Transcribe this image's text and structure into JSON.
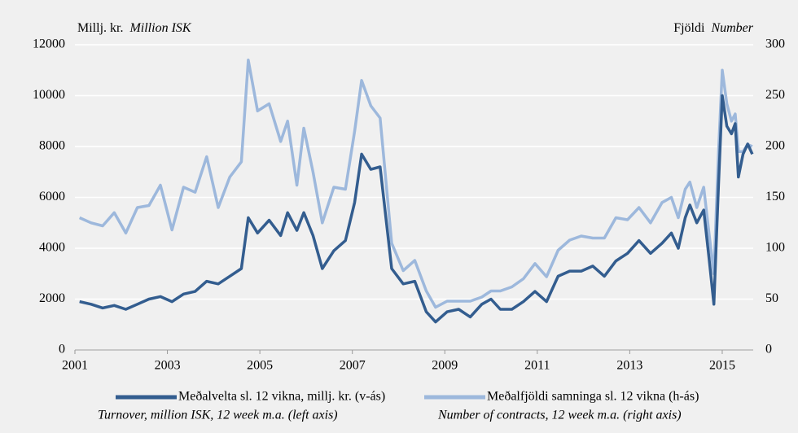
{
  "chart_data": {
    "type": "line",
    "ylabel": "Millj. kr.",
    "ylabel_en": "Million ISK",
    "y2label": "Fjöldi",
    "y2label_en": "Number",
    "x": [
      2001.1,
      2001.35,
      2001.6,
      2001.85,
      2002.1,
      2002.35,
      2002.6,
      2002.85,
      2003.1,
      2003.35,
      2003.6,
      2003.85,
      2004.1,
      2004.35,
      2004.6,
      2004.75,
      2004.95,
      2005.2,
      2005.45,
      2005.6,
      2005.8,
      2005.95,
      2006.15,
      2006.35,
      2006.6,
      2006.85,
      2007.05,
      2007.2,
      2007.4,
      2007.6,
      2007.85,
      2008.1,
      2008.35,
      2008.6,
      2008.8,
      2009.05,
      2009.3,
      2009.55,
      2009.8,
      2010.0,
      2010.2,
      2010.45,
      2010.7,
      2010.95,
      2011.2,
      2011.45,
      2011.7,
      2011.95,
      2012.2,
      2012.45,
      2012.7,
      2012.95,
      2013.2,
      2013.45,
      2013.7,
      2013.9,
      2014.05,
      2014.2,
      2014.3,
      2014.45,
      2014.6,
      2014.72,
      2014.82,
      2014.92,
      2015.0,
      2015.1,
      2015.2,
      2015.28,
      2015.35,
      2015.45,
      2015.55,
      2015.65
    ],
    "series": [
      {
        "name": "Meðalvelta sl. 12 vikna, millj. kr. (v-ás)",
        "description": "Turnover, million ISK, 12 week m.a. (left axis)",
        "color": "#335d8f",
        "axis": "y",
        "values": [
          1900,
          1800,
          1650,
          1750,
          1600,
          1800,
          2000,
          2100,
          1900,
          2200,
          2300,
          2700,
          2600,
          2900,
          3200,
          5200,
          4600,
          5100,
          4500,
          5400,
          4700,
          5400,
          4500,
          3200,
          3900,
          4300,
          5800,
          7700,
          7100,
          7200,
          3200,
          2600,
          2700,
          1500,
          1100,
          1500,
          1600,
          1300,
          1800,
          2000,
          1600,
          1600,
          1900,
          2300,
          1900,
          2900,
          3100,
          3100,
          3300,
          2900,
          3500,
          3800,
          4300,
          3800,
          4200,
          4600,
          4000,
          5200,
          5700,
          5000,
          5500,
          3500,
          1800,
          6500,
          10000,
          8800,
          8500,
          8900,
          6800,
          7700,
          8100,
          7700
        ]
      },
      {
        "name": "Meðalfjöldi samninga sl. 12 vikna (h-ás)",
        "description": "Number of contracts, 12 week m.a. (right axis)",
        "color": "#9db8dc",
        "axis": "y2",
        "values": [
          130,
          125,
          122,
          135,
          115,
          140,
          142,
          162,
          118,
          160,
          155,
          190,
          140,
          170,
          185,
          285,
          235,
          242,
          205,
          225,
          162,
          218,
          175,
          125,
          160,
          158,
          215,
          265,
          240,
          228,
          105,
          78,
          88,
          58,
          42,
          48,
          48,
          48,
          52,
          58,
          58,
          62,
          70,
          85,
          72,
          98,
          108,
          112,
          110,
          110,
          130,
          128,
          140,
          125,
          145,
          150,
          130,
          158,
          165,
          140,
          160,
          112,
          75,
          195,
          275,
          242,
          225,
          232,
          195,
          195,
          202,
          200
        ]
      }
    ],
    "xlim": [
      2001,
      2015.67
    ],
    "xticks": [
      2001,
      2003,
      2005,
      2007,
      2009,
      2011,
      2013,
      2015
    ],
    "ylim": [
      0,
      12000
    ],
    "yticks": [
      0,
      2000,
      4000,
      6000,
      8000,
      10000,
      12000
    ],
    "y2lim": [
      0,
      300
    ],
    "y2ticks": [
      0,
      50,
      100,
      150,
      200,
      250,
      300
    ],
    "grid": true,
    "legend": "bottom"
  }
}
